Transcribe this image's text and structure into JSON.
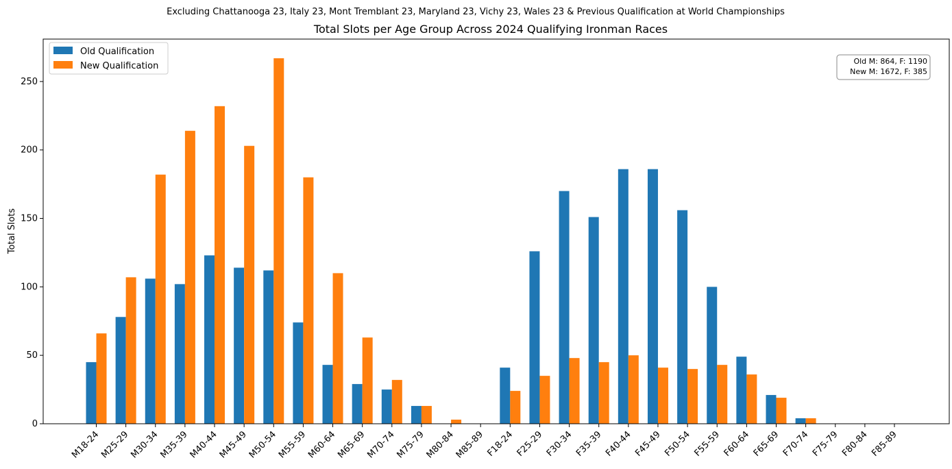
{
  "chart_data": {
    "type": "bar",
    "suptitle": "Excluding Chattanooga 23, Italy 23, Mont Tremblant 23, Maryland 23, Vichy 23, Wales 23 & Previous Qualification at World Championships",
    "title": "Total Slots per Age Group Across 2024 Qualifying Ironman Races",
    "xlabel": "",
    "ylabel": "Total Slots",
    "ylim": [
      0,
      281
    ],
    "yticks": [
      0,
      50,
      100,
      150,
      200,
      250
    ],
    "grid": false,
    "legend_position": "top-left",
    "categories": [
      "M18-24",
      "M25-29",
      "M30-34",
      "M35-39",
      "M40-44",
      "M45-49",
      "M50-54",
      "M55-59",
      "M60-64",
      "M65-69",
      "M70-74",
      "M75-79",
      "M80-84",
      "M85-89",
      "F18-24",
      "F25-29",
      "F30-34",
      "F35-39",
      "F40-44",
      "F45-49",
      "F50-54",
      "F55-59",
      "F60-64",
      "F65-69",
      "F70-74",
      "F75-79",
      "F80-84",
      "F85-89"
    ],
    "series": [
      {
        "name": "Old Qualification",
        "color": "#1f77b4",
        "values": [
          45,
          78,
          106,
          102,
          123,
          114,
          112,
          74,
          43,
          29,
          25,
          13,
          0,
          0,
          41,
          126,
          170,
          151,
          186,
          186,
          156,
          100,
          49,
          21,
          4,
          0,
          0,
          0
        ]
      },
      {
        "name": "New Qualification",
        "color": "#ff7f0e",
        "values": [
          66,
          107,
          182,
          214,
          232,
          203,
          267,
          180,
          110,
          63,
          32,
          13,
          3,
          0,
          24,
          35,
          48,
          45,
          50,
          41,
          40,
          43,
          36,
          19,
          4,
          0,
          0,
          0
        ]
      }
    ],
    "annotation": [
      "Old M: 864, F: 1190",
      "New M: 1672, F: 385"
    ]
  }
}
